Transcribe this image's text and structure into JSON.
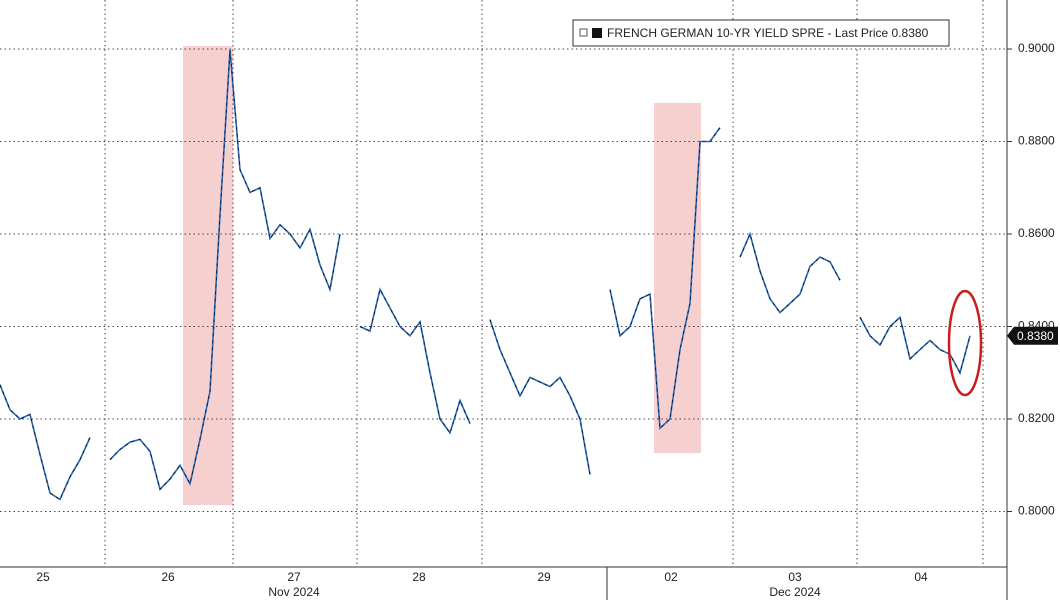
{
  "chart_data": {
    "type": "line",
    "series": [
      {
        "name": "FRENCH GERMAN 10-YR YIELD SPRE",
        "color": "#2667b8",
        "values": [
          0.8274,
          0.822,
          0.82,
          0.821,
          0.8123,
          0.804,
          0.8026,
          0.8075,
          0.8112,
          0.816,
          null,
          0.8112,
          0.8134,
          0.815,
          0.8156,
          0.813,
          0.8048,
          0.807,
          0.81,
          0.806,
          0.8156,
          0.826,
          0.8641,
          0.8998,
          0.8739,
          0.869,
          0.87,
          0.859,
          0.862,
          0.86,
          0.857,
          0.861,
          0.8533,
          0.848,
          0.86,
          null,
          0.84,
          0.839,
          0.848,
          0.844,
          0.84,
          0.838,
          0.841,
          0.83,
          0.82,
          0.817,
          0.824,
          0.819,
          null,
          0.8415,
          0.835,
          0.83,
          0.825,
          0.829,
          0.828,
          0.827,
          0.829,
          0.825,
          0.82,
          0.808,
          null,
          0.848,
          0.838,
          0.84,
          0.846,
          0.847,
          0.818,
          0.82,
          0.835,
          0.845,
          0.88,
          0.88,
          0.883,
          null,
          0.855,
          0.86,
          0.852,
          0.846,
          0.843,
          0.845,
          0.847,
          0.853,
          0.855,
          0.854,
          0.85,
          null,
          0.842,
          0.838,
          0.836,
          0.84,
          0.842,
          0.833,
          0.835,
          0.837,
          0.835,
          0.834,
          0.83,
          0.838
        ]
      }
    ],
    "legend_suffix": "- Last Price",
    "last_price": {
      "value": 0.838,
      "label": "0.8380"
    },
    "x_labels": [
      "25",
      "26",
      "27",
      "28",
      "29",
      "02",
      "03",
      "04"
    ],
    "month_labels": [
      "Nov 2024",
      "Dec 2024"
    ],
    "ylim": [
      0.788,
      0.9106
    ],
    "yticks": [
      {
        "value": 0.8,
        "label": "0.8000"
      },
      {
        "value": 0.82,
        "label": "0.8200"
      },
      {
        "value": 0.84,
        "label": "0.8400"
      },
      {
        "value": 0.86,
        "label": "0.8600"
      },
      {
        "value": 0.88,
        "label": "0.8800"
      },
      {
        "value": 0.9,
        "label": "0.9000"
      }
    ],
    "grid": true
  }
}
